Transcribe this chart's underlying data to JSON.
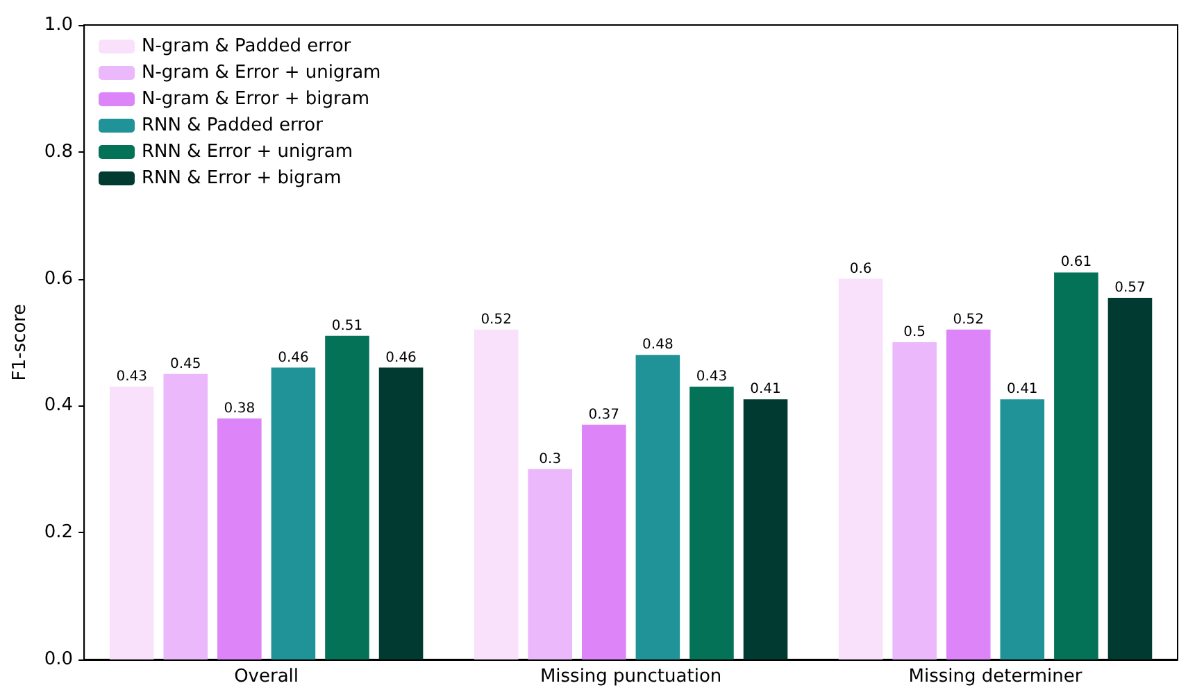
{
  "chart_data": {
    "type": "bar",
    "ylabel": "F1-score",
    "categories": [
      "Overall",
      "Missing punctuation",
      "Missing determiner"
    ],
    "series": [
      {
        "name": "N-gram & Padded error",
        "color": "#f9e1fb",
        "values": [
          0.43,
          0.52,
          0.6
        ]
      },
      {
        "name": "N-gram & Error + unigram",
        "color": "#eab8fb",
        "values": [
          0.45,
          0.3,
          0.5
        ]
      },
      {
        "name": "N-gram & Error + bigram",
        "color": "#dc84f8",
        "values": [
          0.38,
          0.37,
          0.52
        ]
      },
      {
        "name": "RNN & Padded error",
        "color": "#1f9398",
        "values": [
          0.46,
          0.48,
          0.41
        ]
      },
      {
        "name": "RNN & Error + unigram",
        "color": "#037257",
        "values": [
          0.51,
          0.43,
          0.61
        ]
      },
      {
        "name": "RNN & Error + bigram",
        "color": "#003a31",
        "values": [
          0.46,
          0.41,
          0.57
        ]
      }
    ],
    "ylim": [
      0,
      1
    ],
    "yticks": [
      {
        "value": 0,
        "label": "0.0"
      },
      {
        "value": 0.2,
        "label": "0.2"
      },
      {
        "value": 0.4,
        "label": "0.4"
      },
      {
        "value": 0.6,
        "label": "0.6"
      },
      {
        "value": 0.8,
        "label": "0.8"
      },
      {
        "value": 1,
        "label": "1.0"
      }
    ],
    "grid": false,
    "legend": "top left",
    "data_labels": true
  }
}
